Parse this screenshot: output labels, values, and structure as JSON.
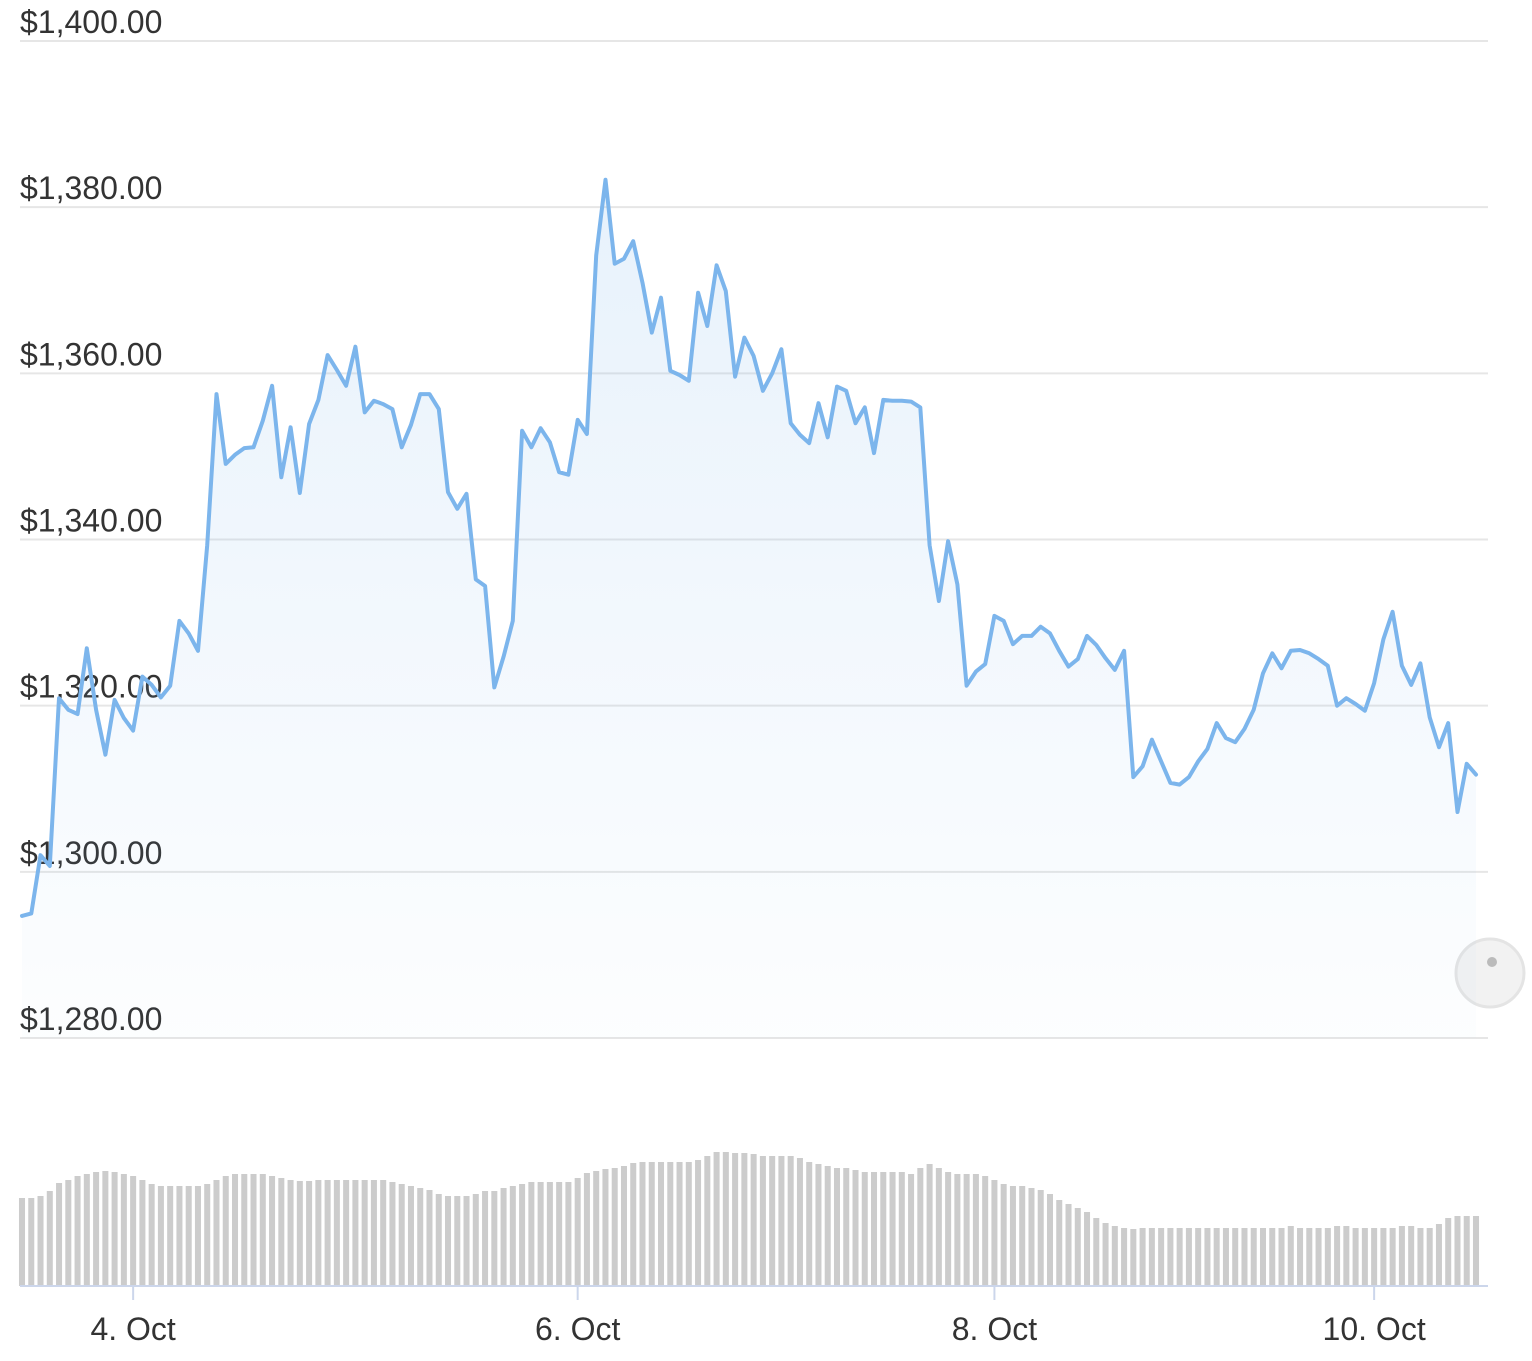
{
  "chart_data": {
    "type": "line",
    "categories": [
      null,
      null,
      null,
      null,
      null,
      null,
      null,
      null,
      null,
      null,
      null,
      null,
      "4. Oct",
      null,
      null,
      null,
      null,
      null,
      null,
      null,
      null,
      null,
      null,
      null,
      null,
      null,
      null,
      null,
      null,
      null,
      null,
      null,
      null,
      null,
      null,
      null,
      null,
      null,
      null,
      null,
      null,
      null,
      null,
      null,
      null,
      null,
      null,
      null,
      null,
      null,
      null,
      null,
      null,
      null,
      null,
      null,
      null,
      null,
      null,
      null,
      "6. Oct",
      null,
      null,
      null,
      null,
      null,
      null,
      null,
      null,
      null,
      null,
      null,
      null,
      null,
      null,
      null,
      null,
      null,
      null,
      null,
      null,
      null,
      null,
      null,
      null,
      null,
      null,
      null,
      null,
      null,
      null,
      null,
      null,
      null,
      null,
      null,
      null,
      null,
      null,
      null,
      null,
      null,
      null,
      null,
      null,
      "8. Oct",
      null,
      null,
      null,
      null,
      null,
      null,
      null,
      null,
      null,
      null,
      null,
      null,
      null,
      null,
      null,
      null,
      null,
      null,
      null,
      null,
      null,
      null,
      null,
      null,
      null,
      null,
      null,
      null,
      null,
      null,
      null,
      null,
      null,
      null,
      null,
      null,
      null,
      null,
      null,
      null,
      "10. Oct",
      null,
      null,
      null,
      null,
      null,
      null,
      null,
      null,
      null,
      null,
      null
    ],
    "series": [
      {
        "color": "#7cb5ec",
        "values": [
          1294.7,
          1295.0,
          1302.0,
          1300.7,
          1320.9,
          1319.5,
          1319.0,
          1326.9,
          1319.5,
          1314.1,
          1320.7,
          1318.5,
          1317.0,
          1323.5,
          1322.5,
          1321.0,
          1322.4,
          1330.2,
          1328.7,
          1326.6,
          1339.3,
          1357.5,
          1349.1,
          1350.2,
          1351.0,
          1351.1,
          1354.3,
          1358.5,
          1347.5,
          1353.5,
          1345.6,
          1353.9,
          1356.8,
          1362.2,
          1360.4,
          1358.5,
          1363.2,
          1355.3,
          1356.7,
          1356.3,
          1355.7,
          1351.1,
          1353.8,
          1357.5,
          1357.5,
          1355.7,
          1345.7,
          1343.7,
          1345.5,
          1335.2,
          1334.4,
          1322.2,
          1325.9,
          1330.2,
          1353.1,
          1351.1,
          1353.4,
          1351.7,
          1348.1,
          1347.8,
          1354.4,
          1352.7,
          1374.2,
          1383.3,
          1373.2,
          1373.8,
          1375.9,
          1370.9,
          1364.9,
          1369.1,
          1360.3,
          1359.8,
          1359.1,
          1369.7,
          1365.7,
          1373.0,
          1369.9,
          1359.6,
          1364.3,
          1362.1,
          1357.9,
          1360.0,
          1362.9,
          1354.0,
          1352.6,
          1351.6,
          1356.4,
          1352.3,
          1358.4,
          1357.9,
          1354.0,
          1355.9,
          1350.4,
          1356.8,
          1356.7,
          1356.7,
          1356.6,
          1355.9,
          1339.3,
          1332.6,
          1339.8,
          1334.6,
          1322.4,
          1324.1,
          1325.0,
          1330.8,
          1330.2,
          1327.4,
          1328.4,
          1328.4,
          1329.5,
          1328.7,
          1326.6,
          1324.7,
          1325.6,
          1328.4,
          1327.3,
          1325.7,
          1324.3,
          1326.6,
          1311.4,
          1312.7,
          1315.9,
          1313.3,
          1310.7,
          1310.5,
          1311.4,
          1313.3,
          1314.8,
          1317.9,
          1316.1,
          1315.6,
          1317.2,
          1319.5,
          1323.9,
          1326.3,
          1324.5,
          1326.6,
          1326.7,
          1326.3,
          1325.6,
          1324.8,
          1320.0,
          1320.9,
          1320.2,
          1319.4,
          1322.7,
          1328.0,
          1331.3,
          1324.8,
          1322.5,
          1325.1,
          1318.6,
          1315.0,
          1317.9,
          1307.2,
          1313.0,
          1311.7
        ]
      },
      {
        "color": "#cccccc",
        "axis": "y2",
        "values": [
          88,
          88,
          90,
          95,
          103,
          106,
          110,
          112,
          114,
          115,
          114,
          112,
          110,
          106,
          102,
          100,
          100,
          100,
          100,
          100,
          102,
          106,
          110,
          112,
          112,
          112,
          112,
          110,
          108,
          106,
          105,
          105,
          106,
          106,
          106,
          106,
          106,
          106,
          106,
          106,
          104,
          102,
          100,
          98,
          96,
          92,
          90,
          90,
          90,
          92,
          95,
          95,
          98,
          100,
          102,
          104,
          104,
          104,
          104,
          104,
          108,
          113,
          115,
          117,
          118,
          120,
          123,
          124,
          124,
          124,
          124,
          124,
          124,
          126,
          130,
          134,
          134,
          133,
          133,
          132,
          130,
          130,
          130,
          130,
          128,
          124,
          122,
          120,
          118,
          118,
          116,
          114,
          114,
          114,
          114,
          114,
          112,
          118,
          122,
          118,
          114,
          112,
          112,
          112,
          110,
          106,
          102,
          100,
          100,
          98,
          96,
          92,
          86,
          82,
          78,
          74,
          68,
          63,
          60,
          58,
          57,
          58,
          58,
          58,
          58,
          58,
          58,
          58,
          58,
          58,
          58,
          58,
          58,
          58,
          58,
          58,
          58,
          60,
          58,
          58,
          58,
          58,
          60,
          60,
          58,
          58,
          58,
          58,
          58,
          60,
          60,
          58,
          58,
          62,
          68,
          70,
          70,
          70
        ]
      }
    ],
    "ylim": [
      1280,
      1400
    ],
    "yticks": [
      {
        "value": 1280,
        "label": "$1,280.00"
      },
      {
        "value": 1300,
        "label": "$1,300.00"
      },
      {
        "value": 1320,
        "label": "$1,320.00"
      },
      {
        "value": 1340,
        "label": "$1,340.00"
      },
      {
        "value": 1360,
        "label": "$1,360.00"
      },
      {
        "value": 1380,
        "label": "$1,380.00"
      },
      {
        "value": 1400,
        "label": "$1,400.00"
      }
    ],
    "y2lim": [
      0,
      140
    ],
    "grid": true
  }
}
